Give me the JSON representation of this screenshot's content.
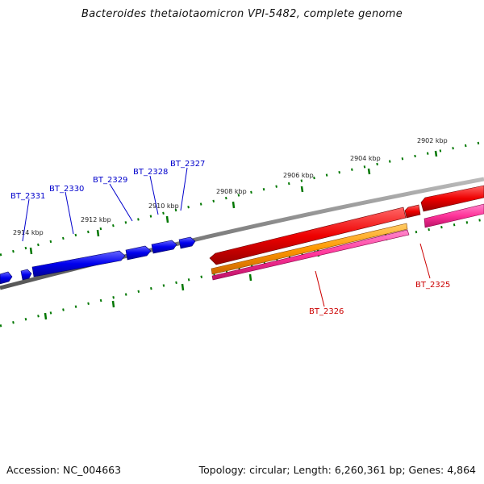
{
  "title": "Bacteroides thetaiotaomicron VPI-5482, complete genome",
  "footer": {
    "accession": "Accession: NC_004663",
    "summary": "Topology: circular; Length: 6,260,361 bp; Genes: 4,864"
  },
  "colors": {
    "backbone": "#808080",
    "forward_gene": "#0000ee",
    "reverse_gene": "#ee0000",
    "reverse_label": "#cc0000",
    "forward_label": "#0000cc",
    "orange_feature": "#ff9900",
    "pink_feature": "#ff3399",
    "tick": "#007700"
  },
  "scale_labels": [
    "2902 kbp",
    "2904 kbp",
    "2906 kbp",
    "2908 kbp",
    "2910 kbp",
    "2912 kbp",
    "2914 kbp"
  ],
  "forward_genes": [
    "BT_2331",
    "BT_2330",
    "BT_2329",
    "BT_2328",
    "BT_2327"
  ],
  "reverse_genes": [
    "BT_2326",
    "BT_2325"
  ]
}
